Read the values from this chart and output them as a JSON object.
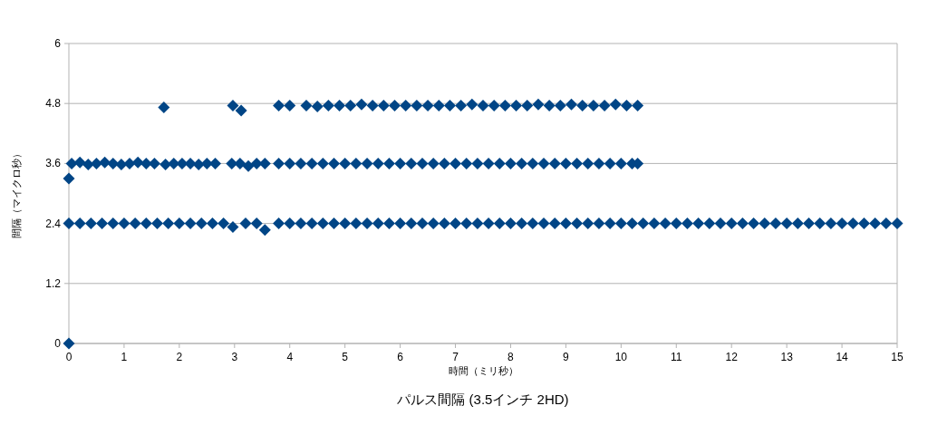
{
  "chart_data": {
    "type": "scatter",
    "title": "パルス間隔 (3.5インチ 2HD)",
    "xlabel": "時間（ミリ秒）",
    "ylabel": "間隔（マイクロ秒）",
    "xlim": [
      0,
      15
    ],
    "ylim": [
      0,
      6
    ],
    "xticks": [
      0,
      1,
      2,
      3,
      4,
      5,
      6,
      7,
      8,
      9,
      10,
      11,
      12,
      13,
      14,
      15
    ],
    "yticks": [
      0,
      {
        "value": 1.2,
        "label": "1.2"
      },
      {
        "value": 2.4,
        "label": "2.4"
      },
      {
        "value": 3.6,
        "label": "3.6"
      },
      {
        "value": 4.8,
        "label": "4.8"
      },
      6
    ],
    "grid": "y",
    "marker": "diamond",
    "series": [
      {
        "color": "#004586",
        "x": [
          0,
          0
        ],
        "values": [
          0,
          3.3
        ]
      },
      {
        "color": "#004586",
        "x": [
          0,
          0.2,
          0.4,
          0.6,
          0.8,
          1,
          1.2,
          1.4,
          1.6,
          1.8,
          2,
          2.2,
          2.4,
          2.6,
          2.8,
          2.97,
          3.2,
          3.4,
          3.55,
          3.8,
          4,
          4.2,
          4.4,
          4.6,
          4.8,
          5,
          5.2,
          5.4,
          5.6,
          5.8,
          6,
          6.2,
          6.4,
          6.6,
          6.8,
          7,
          7.2,
          7.4,
          7.6,
          7.8,
          8,
          8.2,
          8.4,
          8.6,
          8.8,
          9,
          9.2,
          9.4,
          9.6,
          9.8,
          10,
          10.2,
          10.4,
          10.6,
          10.8,
          11,
          11.2,
          11.4,
          11.6,
          11.8,
          12,
          12.2,
          12.4,
          12.6,
          12.8,
          13,
          13.2,
          13.4,
          13.6,
          13.8,
          14,
          14.2,
          14.4,
          14.6,
          14.8,
          15
        ],
        "values": [
          2.4,
          2.4,
          2.4,
          2.4,
          2.4,
          2.4,
          2.4,
          2.4,
          2.4,
          2.4,
          2.4,
          2.4,
          2.4,
          2.4,
          2.4,
          2.33,
          2.4,
          2.4,
          2.27,
          2.4,
          2.4,
          2.4,
          2.4,
          2.4,
          2.4,
          2.4,
          2.4,
          2.4,
          2.4,
          2.4,
          2.4,
          2.4,
          2.4,
          2.4,
          2.4,
          2.4,
          2.4,
          2.4,
          2.4,
          2.4,
          2.4,
          2.4,
          2.4,
          2.4,
          2.4,
          2.4,
          2.4,
          2.4,
          2.4,
          2.4,
          2.4,
          2.4,
          2.4,
          2.4,
          2.4,
          2.4,
          2.4,
          2.4,
          2.4,
          2.4,
          2.4,
          2.4,
          2.4,
          2.4,
          2.4,
          2.4,
          2.4,
          2.4,
          2.4,
          2.4,
          2.4,
          2.4,
          2.4,
          2.4,
          2.4,
          2.4
        ]
      },
      {
        "color": "#004586",
        "x": [
          0.05,
          0.2,
          0.35,
          0.5,
          0.65,
          0.8,
          0.95,
          1.1,
          1.25,
          1.4,
          1.55,
          1.75,
          1.9,
          2.05,
          2.2,
          2.35,
          2.5,
          2.65,
          2.95,
          3.1,
          3.25,
          3.4,
          3.55,
          3.8,
          4,
          4.2,
          4.4,
          4.6,
          4.8,
          5,
          5.2,
          5.4,
          5.6,
          5.8,
          6,
          6.2,
          6.4,
          6.6,
          6.8,
          7,
          7.2,
          7.4,
          7.6,
          7.8,
          8,
          8.2,
          8.4,
          8.6,
          8.8,
          9,
          9.2,
          9.4,
          9.6,
          9.8,
          10,
          10.2,
          10.3
        ],
        "values": [
          3.6,
          3.62,
          3.58,
          3.6,
          3.62,
          3.6,
          3.58,
          3.6,
          3.62,
          3.6,
          3.6,
          3.58,
          3.6,
          3.6,
          3.6,
          3.58,
          3.6,
          3.6,
          3.6,
          3.6,
          3.55,
          3.6,
          3.6,
          3.6,
          3.6,
          3.6,
          3.6,
          3.6,
          3.6,
          3.6,
          3.6,
          3.6,
          3.6,
          3.6,
          3.6,
          3.6,
          3.6,
          3.6,
          3.6,
          3.6,
          3.6,
          3.6,
          3.6,
          3.6,
          3.6,
          3.6,
          3.6,
          3.6,
          3.6,
          3.6,
          3.6,
          3.6,
          3.6,
          3.6,
          3.6,
          3.6,
          3.6
        ]
      },
      {
        "color": "#004586",
        "x": [
          1.72,
          2.97,
          3.12,
          3.8,
          4,
          4.3,
          4.5,
          4.7,
          4.9,
          5.1,
          5.3,
          5.5,
          5.7,
          5.9,
          6.1,
          6.3,
          6.5,
          6.7,
          6.9,
          7.1,
          7.3,
          7.5,
          7.7,
          7.9,
          8.1,
          8.3,
          8.5,
          8.7,
          8.9,
          9.1,
          9.3,
          9.5,
          9.7,
          9.9,
          10.1,
          10.3
        ],
        "values": [
          4.72,
          4.76,
          4.66,
          4.76,
          4.76,
          4.76,
          4.74,
          4.76,
          4.76,
          4.76,
          4.78,
          4.76,
          4.76,
          4.76,
          4.76,
          4.76,
          4.76,
          4.76,
          4.76,
          4.76,
          4.78,
          4.76,
          4.76,
          4.76,
          4.76,
          4.76,
          4.78,
          4.76,
          4.76,
          4.78,
          4.76,
          4.76,
          4.76,
          4.78,
          4.76,
          4.76
        ]
      }
    ]
  }
}
